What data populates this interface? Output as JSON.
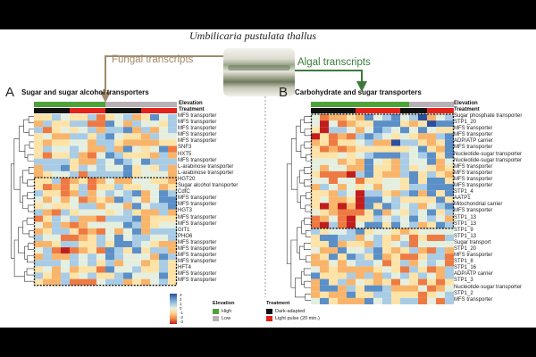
{
  "figure": {
    "title": "Umbilicaria pustulata thallus",
    "fungal_label": "Fungal transcripts",
    "algal_label": "Algal transcripts",
    "colors": {
      "fungal_arrow": "#a08a6a",
      "algal_arrow": "#3c7a3c",
      "high": "#4da33a",
      "low": "#b9b0b5",
      "dark": "#111111",
      "light": "#e3221c"
    }
  },
  "panel_a": {
    "letter": "A",
    "title": "Sugar and sugar alcohol transporters",
    "elevation_label": "Elevation",
    "treatment_label": "Treatment",
    "rows": [
      "MFS transporter",
      "MFS transporter",
      "MFS transporter",
      "MFS transporter",
      "MFS transporter",
      "SNF3",
      "HXT5",
      "MFS transporter",
      "L-arabinose transporter",
      "L-arabinose transporter",
      "HGT20",
      "Sugar alcohol transporter",
      "CdfC",
      "MFS transporter",
      "MFS transporter",
      "HGT3",
      "MFS transporter",
      "MFS transporter",
      "GIT1",
      "PHO6",
      "MFS transporter",
      "MFS transporter",
      "MFS transporter",
      "MFS transporter",
      "HFT4",
      "MFS transporter",
      "MFS transporter"
    ]
  },
  "panel_b": {
    "letter": "B",
    "title": "Carbohydrate and sugar transporters",
    "elevation_label": "Elevation",
    "treatment_label": "Treatment",
    "rows": [
      "Sugar phosphate transporter",
      "STP1_20",
      "MFS transporter",
      "MFS transporter",
      "ADP/ATP carrier",
      "MFS transporter",
      "Nucleotide-sugar transporter",
      "Nucleotide-sugar transporter",
      "MFS transporter",
      "MFS transporter",
      "MFS transporter",
      "MFS transporter",
      "STP1_4",
      "AATP1",
      "Mitochondrial carrier",
      "MFS transporter",
      "STP1_13",
      "STP1_13",
      "STP1_9",
      "STP1_13",
      "Sugar transport",
      "STP1_20",
      "MFS transporter",
      "STP1_8",
      "STP1_16",
      "ADP/ATP carrier",
      "STP1_3",
      "Nucleotide-sugar transporter",
      "STP1_2",
      "MFS transporter"
    ]
  },
  "legend": {
    "scale_ticks": [
      "3",
      "2",
      "1",
      "0",
      "-1",
      "-2",
      "-3"
    ],
    "elevation_title": "Elevation",
    "elevation_items": [
      "High",
      "Low"
    ],
    "treatment_title": "Treatment",
    "treatment_items": [
      "Dark-adapted",
      "Light pulse (20 min.)"
    ]
  }
}
